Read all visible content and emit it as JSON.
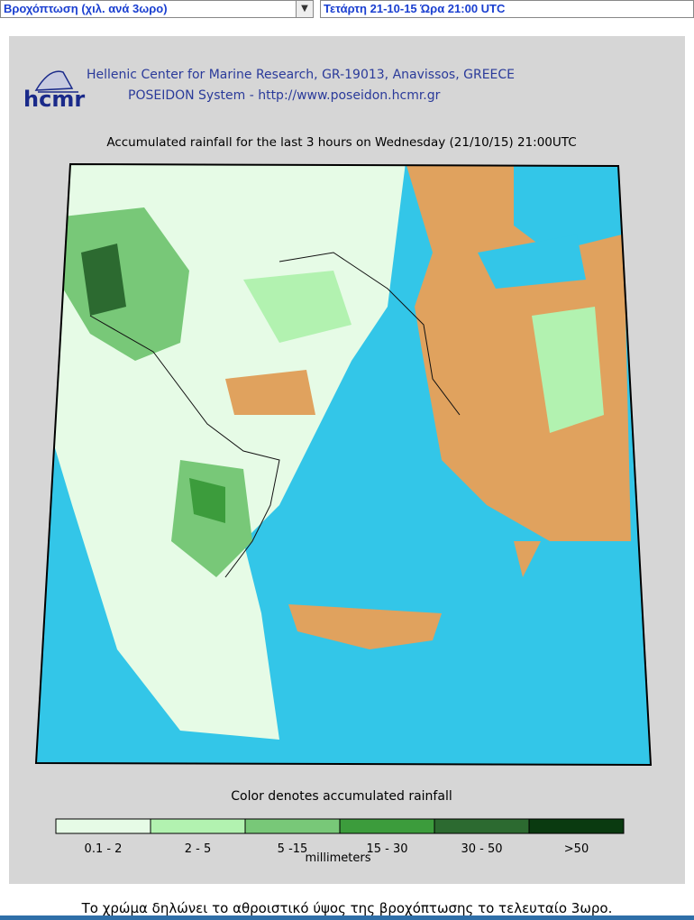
{
  "toolbar": {
    "parameter": "Βροχόπτωση (χιλ. ανά 3ωρο)",
    "datetime": "Τετάρτη 21-10-15 Ώρα 21:00 UTC"
  },
  "header": {
    "logo": "hcmr",
    "line1": "Hellenic Center for Marine Research, GR-19013, Anavissos, GREECE",
    "line2": "POSEIDON System - http://www.poseidon.hcmr.gr"
  },
  "map": {
    "title": "Accumulated rainfall for the last 3 hours on Wednesday (21/10/15) 21:00UTC"
  },
  "legend": {
    "caption": "Color denotes accumulated rainfall",
    "units": "millimeters",
    "classes": [
      {
        "label": "0.1 - 2",
        "color": "#e6fbe6"
      },
      {
        "label": "2 - 5",
        "color": "#b2f2b0"
      },
      {
        "label": "5 -15",
        "color": "#78c878"
      },
      {
        "label": "15 - 30",
        "color": "#3c9c3c"
      },
      {
        "label": "30 - 50",
        "color": "#2c6a30"
      },
      {
        "label": ">50",
        "color": "#0a3a10"
      }
    ]
  },
  "footer": {
    "note": "Το χρώμα δηλώνει το αθροιστικό ύψος της βροχόπτωσης το τελευταίο 3ωρο."
  }
}
